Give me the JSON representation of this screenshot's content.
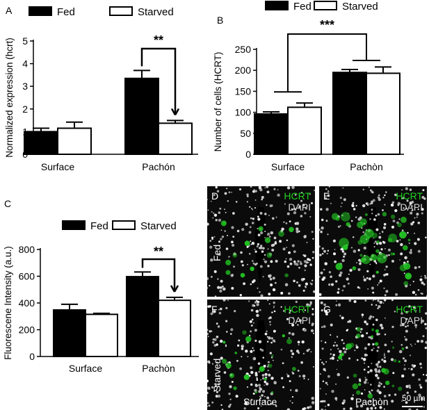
{
  "chart_data": [
    {
      "panel": "A",
      "type": "bar",
      "categories": [
        "Surface",
        "Pachón"
      ],
      "series": [
        {
          "name": "Fed",
          "values": [
            1.0,
            3.35
          ],
          "errors": [
            0.15,
            0.35
          ],
          "color": "#000000"
        },
        {
          "name": "Starved",
          "values": [
            1.15,
            1.37
          ],
          "errors": [
            0.27,
            0.12
          ],
          "color": "#ffffff"
        }
      ],
      "ylabel": "Normalized expression (hcrt)",
      "ylim": [
        0,
        5
      ],
      "yticks": [
        "0",
        "1",
        "2",
        "3",
        "4",
        "5"
      ],
      "legend": [
        "Fed",
        "Starved"
      ],
      "legend_position": "top",
      "significance": "**",
      "grid": false
    },
    {
      "panel": "B",
      "type": "bar",
      "categories": [
        "Surface",
        "Pachòn"
      ],
      "series": [
        {
          "name": "Fed",
          "values": [
            96,
            195
          ],
          "errors": [
            5,
            7
          ],
          "color": "#000000"
        },
        {
          "name": "Starved",
          "values": [
            112,
            193
          ],
          "errors": [
            10,
            15
          ],
          "color": "#ffffff"
        }
      ],
      "ylabel": "Number of cells (HCRT)",
      "ylim": [
        0,
        250
      ],
      "yticks": [
        "0",
        "50",
        "100",
        "150",
        "200",
        "250"
      ],
      "legend": [
        "Fed",
        "Starved"
      ],
      "legend_position": "top",
      "significance": "***",
      "grid": false
    },
    {
      "panel": "C",
      "type": "bar",
      "categories": [
        "Surface",
        "Pachòn"
      ],
      "series": [
        {
          "name": "Fed",
          "values": [
            348,
            597
          ],
          "errors": [
            42,
            35
          ],
          "color": "#000000"
        },
        {
          "name": "Starved",
          "values": [
            315,
            420
          ],
          "errors": [
            8,
            22
          ],
          "color": "#ffffff"
        }
      ],
      "ylabel": "Fluorescene Intensity (a.u.)",
      "ylim": [
        0,
        800
      ],
      "yticks": [
        "0",
        "200",
        "400",
        "600",
        "800"
      ],
      "legend": [
        "Fed",
        "Starved"
      ],
      "legend_position": "top",
      "significance": "**",
      "grid": false
    }
  ],
  "micrographs": {
    "tiles": [
      {
        "letter": "D",
        "hcrt": "HCRT",
        "dapi": "DAPI"
      },
      {
        "letter": "E",
        "hcrt": "HCRT",
        "dapi": "DAPI"
      },
      {
        "letter": "F",
        "hcrt": "HCRT",
        "dapi": "DAPI"
      },
      {
        "letter": "G",
        "hcrt": "HCRT",
        "dapi": "DAPI"
      }
    ],
    "row_labels": [
      "Fed",
      "Starved"
    ],
    "col_labels": [
      "Surface",
      "Pachòn"
    ],
    "scale_bar": "50 µm",
    "colors": {
      "hcrt": "#22d322",
      "dapi": "#d9d9d9",
      "background": "#0b0b0b"
    }
  }
}
